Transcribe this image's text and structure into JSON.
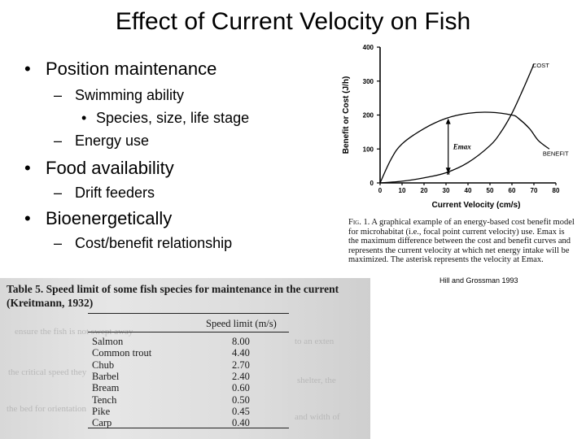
{
  "slide": {
    "title": "Effect of Current Velocity on Fish",
    "bullets": {
      "b1": "Position maintenance",
      "b1_sub1": "Swimming ability",
      "b1_sub1_sub1": "Species, size, life stage",
      "b1_sub2": "Energy use",
      "b2": "Food availability",
      "b2_sub1": "Drift feeders",
      "b3": "Bioenergetically",
      "b3_sub1": "Cost/benefit relationship"
    },
    "bullet_marks": {
      "level1": "•",
      "level2": "–",
      "level3": "•"
    },
    "citation": "Hill and Grossman 1993"
  },
  "figure_caption": {
    "label": "Fig. 1.",
    "text": "A graphical example of an energy-based cost benefit model for microhabitat (i.e., focal point current velocity) use. Emax is the maximum difference between the cost and benefit curves and represents the current velocity at which net energy intake will be maximized. The asterisk represents the velocity at Emax."
  },
  "chart_data": {
    "type": "line",
    "xlabel": "Current Velocity (cm/s)",
    "ylabel": "Benefit or Cost (J/h)",
    "xlim": [
      0,
      80
    ],
    "ylim": [
      0,
      400
    ],
    "xticks": [
      0,
      10,
      20,
      30,
      40,
      50,
      60,
      70,
      80
    ],
    "yticks": [
      0,
      100,
      200,
      300,
      400
    ],
    "grid": false,
    "series": [
      {
        "name": "COST",
        "color": "#000000",
        "style": "solid",
        "x": [
          0,
          10,
          20,
          30,
          40,
          50,
          55,
          60,
          65,
          70
        ],
        "y": [
          0,
          5,
          15,
          30,
          60,
          110,
          150,
          205,
          275,
          350
        ]
      },
      {
        "name": "BENEFIT",
        "color": "#000000",
        "style": "solid",
        "x": [
          0,
          5,
          10,
          20,
          30,
          40,
          50,
          60,
          63,
          68,
          72,
          77
        ],
        "y": [
          0,
          70,
          115,
          160,
          190,
          205,
          208,
          200,
          190,
          160,
          125,
          100
        ]
      }
    ],
    "annotations": [
      {
        "text": "Emax",
        "x": 31,
        "from_y": 28,
        "to_y": 190
      },
      {
        "text": "*",
        "x": 31,
        "y": 20
      }
    ]
  },
  "table": {
    "title": "Table 5. Speed limit of some fish species for maintenance in the current (Kreitmann, 1932)",
    "header": "Speed limit (m/s)",
    "rows": [
      {
        "species": "Salmon",
        "value": "8.00"
      },
      {
        "species": "Common trout",
        "value": "4.40"
      },
      {
        "species": "Chub",
        "value": "2.70"
      },
      {
        "species": "Barbel",
        "value": "2.40"
      },
      {
        "species": "Bream",
        "value": "0.60"
      },
      {
        "species": "Tench",
        "value": "0.50"
      },
      {
        "species": "Pike",
        "value": "0.45"
      },
      {
        "species": "Carp",
        "value": "0.40"
      }
    ]
  }
}
